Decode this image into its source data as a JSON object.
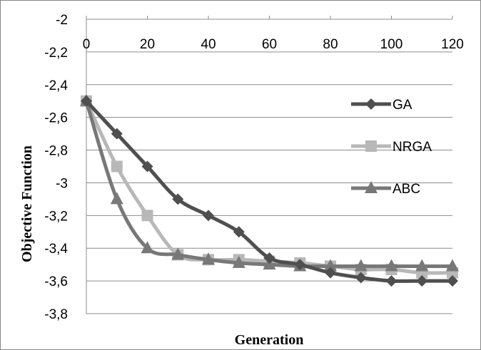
{
  "chart_data": {
    "type": "line",
    "xlabel": "Generation",
    "ylabel": "Objective Function",
    "x": [
      0,
      10,
      20,
      30,
      40,
      50,
      60,
      70,
      80,
      90,
      100,
      110,
      120
    ],
    "xlim": [
      0,
      120
    ],
    "ylim": [
      -3.8,
      -2.0
    ],
    "x_ticks": [
      "0",
      "20",
      "40",
      "60",
      "80",
      "100",
      "120"
    ],
    "y_ticks": [
      "-2",
      "-2,2",
      "-2,4",
      "-2,6",
      "-2,8",
      "-3",
      "-3,2",
      "-3,4",
      "-3,6",
      "-3,8"
    ],
    "x_axis_position": "top",
    "grid": true,
    "legend_position": "right",
    "series": [
      {
        "name": "GA",
        "marker": "diamond",
        "color": "#4f4f4f",
        "values": [
          -2.5,
          -2.7,
          -2.9,
          -3.1,
          -3.2,
          -3.3,
          -3.46,
          -3.5,
          -3.55,
          -3.58,
          -3.6,
          -3.6,
          -3.6
        ]
      },
      {
        "name": "NRGA",
        "marker": "square",
        "color": "#b8b8b8",
        "values": [
          -2.5,
          -2.9,
          -3.2,
          -3.44,
          -3.47,
          -3.47,
          -3.48,
          -3.49,
          -3.51,
          -3.53,
          -3.53,
          -3.55,
          -3.55
        ]
      },
      {
        "name": "ABC",
        "marker": "triangle",
        "color": "#787878",
        "values": [
          -2.5,
          -3.1,
          -3.4,
          -3.44,
          -3.47,
          -3.49,
          -3.5,
          -3.51,
          -3.51,
          -3.51,
          -3.51,
          -3.51,
          -3.51
        ]
      }
    ]
  }
}
